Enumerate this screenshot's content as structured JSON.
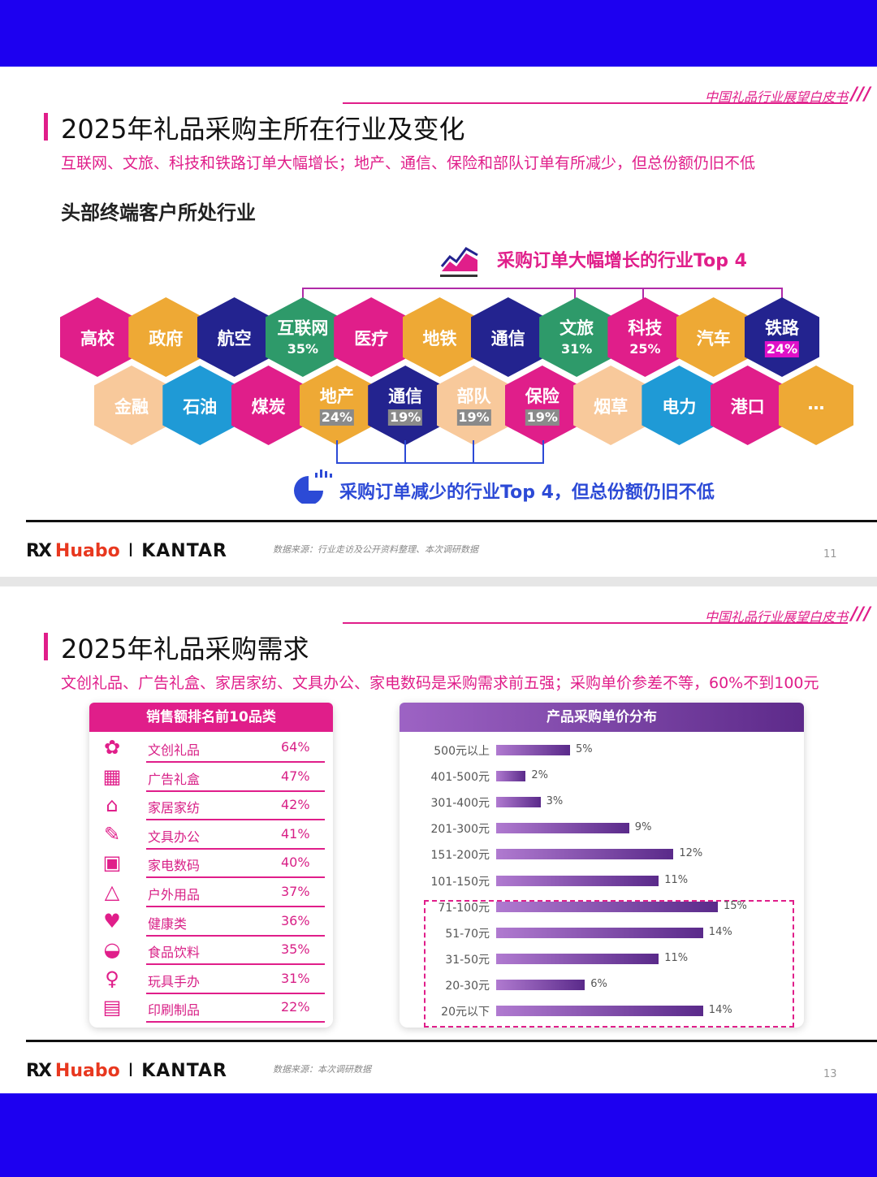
{
  "slide1": {
    "brand": "中国礼品行业展望白皮书",
    "brand_mark": "///",
    "title": "2025年礼品采购主所在行业及变化",
    "subtitle": "互联网、文旅、科技和铁路订单大幅增长；地产、通信、保险和部队订单有所减少，但总份额仍旧不低",
    "section": "头部终端客户所处行业",
    "growth_caption": "采购订单大幅增长的行业Top 4",
    "decline_caption": "采购订单减少的行业Top 4，但总份额仍旧不低",
    "row1": [
      {
        "label": "高校",
        "color": "#e01e8a"
      },
      {
        "label": "政府",
        "color": "#eea935"
      },
      {
        "label": "航空",
        "color": "#23238f"
      },
      {
        "label": "互联网",
        "pct": "35%",
        "color": "#2e9a6a"
      },
      {
        "label": "医疗",
        "color": "#e01e8a"
      },
      {
        "label": "地铁",
        "color": "#eea935"
      },
      {
        "label": "通信",
        "color": "#23238f"
      },
      {
        "label": "文旅",
        "pct": "31%",
        "color": "#2e9a6a"
      },
      {
        "label": "科技",
        "pct": "25%",
        "color": "#e01e8a"
      },
      {
        "label": "汽车",
        "color": "#eea935"
      },
      {
        "label": "铁路",
        "pct": "24%",
        "color": "#23238f"
      }
    ],
    "row2": [
      {
        "label": "金融",
        "color": "#f8c99b"
      },
      {
        "label": "石油",
        "color": "#1f9ad6"
      },
      {
        "label": "煤炭",
        "color": "#e01e8a"
      },
      {
        "label": "地产",
        "pct": "24%",
        "color": "#eea935"
      },
      {
        "label": "通信",
        "pct": "19%",
        "color": "#23238f"
      },
      {
        "label": "部队",
        "pct": "19%",
        "color": "#f8c99b"
      },
      {
        "label": "保险",
        "pct": "19%",
        "color": "#e01e8a"
      },
      {
        "label": "烟草",
        "color": "#f8c99b"
      },
      {
        "label": "电力",
        "color": "#1f9ad6"
      },
      {
        "label": "港口",
        "color": "#e01e8a"
      },
      {
        "label": "…",
        "color": "#eea935"
      }
    ],
    "logo_rx": "RX",
    "logo_huabo": "Huabo",
    "logo_sep": "I",
    "logo_kantar": "KANTAR",
    "source": "数据来源：行业走访及公开资料整理、本次调研数据",
    "page": "11"
  },
  "slide2": {
    "brand": "中国礼品行业展望白皮书",
    "brand_mark": "///",
    "title": "2025年礼品采购需求",
    "subtitle": "文创礼品、广告礼盒、家居家纺、文具办公、家电数码是采购需求前五强；采购单价参差不等，60%不到100元",
    "left_header": "销售额排名前10品类",
    "categories": [
      {
        "icon": "bow-icon",
        "name": "文创礼品",
        "pct": "64%"
      },
      {
        "icon": "gift-box-icon",
        "name": "广告礼盒",
        "pct": "47%"
      },
      {
        "icon": "hanger-icon",
        "name": "家居家纺",
        "pct": "42%"
      },
      {
        "icon": "pen-cup-icon",
        "name": "文具办公",
        "pct": "41%"
      },
      {
        "icon": "microwave-icon",
        "name": "家电数码",
        "pct": "40%"
      },
      {
        "icon": "tent-icon",
        "name": "户外用品",
        "pct": "37%"
      },
      {
        "icon": "health-jar-icon",
        "name": "健康类",
        "pct": "36%"
      },
      {
        "icon": "bowl-icon",
        "name": "食品饮料",
        "pct": "35%"
      },
      {
        "icon": "toy-figure-icon",
        "name": "玩具手办",
        "pct": "31%"
      },
      {
        "icon": "print-icon",
        "name": "印刷制品",
        "pct": "22%"
      }
    ],
    "right_header": "产品采购单价分布",
    "logo_rx": "RX",
    "logo_huabo": "Huabo",
    "logo_sep": "I",
    "logo_kantar": "KANTAR",
    "source": "数据来源：本次调研数据",
    "page": "13"
  },
  "chart_data": {
    "type": "bar",
    "orientation": "horizontal",
    "title": "产品采购单价分布",
    "categories": [
      "500元以上",
      "401-500元",
      "301-400元",
      "201-300元",
      "151-200元",
      "101-150元",
      "71-100元",
      "51-70元",
      "31-50元",
      "20-30元",
      "20元以下"
    ],
    "values": [
      5,
      2,
      3,
      9,
      12,
      11,
      15,
      14,
      11,
      6,
      14
    ],
    "labels": [
      "5%",
      "2%",
      "3%",
      "9%",
      "12%",
      "11%",
      "15%",
      "14%",
      "11%",
      "6%",
      "14%"
    ],
    "unit": "%",
    "highlight": [
      "71-100元",
      "51-70元",
      "31-50元",
      "20-30元",
      "20元以下"
    ],
    "xlim": [
      0,
      15
    ],
    "grid": false,
    "colors": {
      "bar_start": "#b07ad0",
      "bar_end": "#5a2a8a",
      "highlight_box": "#e01e8a"
    }
  }
}
